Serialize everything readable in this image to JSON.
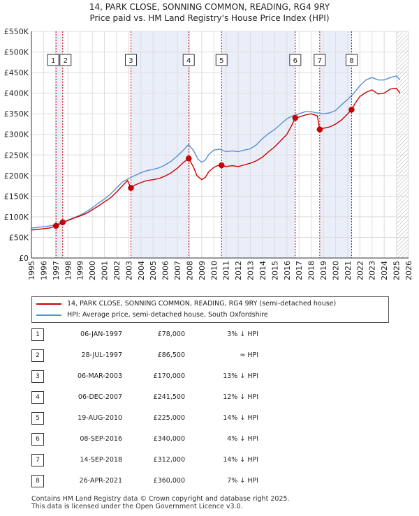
{
  "title": {
    "line1": "14, PARK CLOSE, SONNING COMMON, READING, RG4 9RY",
    "line2": "Price paid vs. HM Land Registry's House Price Index (HPI)"
  },
  "colors": {
    "property": "#cc0000",
    "hpi": "#5b8fd0",
    "band": "#e9eef9",
    "grid": "#dddddd",
    "marker_line": "#cc0000"
  },
  "legend": {
    "property_label": "14, PARK CLOSE, SONNING COMMON, READING, RG4 9RY (semi-detached house)",
    "hpi_label": "HPI: Average price, semi-detached house, South Oxfordshire"
  },
  "sales": [
    {
      "num": "1",
      "date": "06-JAN-1997",
      "price": "£78,000",
      "hpi": "3% ↓ HPI"
    },
    {
      "num": "2",
      "date": "28-JUL-1997",
      "price": "£86,500",
      "hpi": "≈ HPI"
    },
    {
      "num": "3",
      "date": "06-MAR-2003",
      "price": "£170,000",
      "hpi": "13% ↓ HPI"
    },
    {
      "num": "4",
      "date": "06-DEC-2007",
      "price": "£241,500",
      "hpi": "12% ↓ HPI"
    },
    {
      "num": "5",
      "date": "19-AUG-2010",
      "price": "£225,000",
      "hpi": "14% ↓ HPI"
    },
    {
      "num": "6",
      "date": "08-SEP-2016",
      "price": "£340,000",
      "hpi": "4% ↓ HPI"
    },
    {
      "num": "7",
      "date": "14-SEP-2018",
      "price": "£312,000",
      "hpi": "14% ↓ HPI"
    },
    {
      "num": "8",
      "date": "26-APR-2021",
      "price": "£360,000",
      "hpi": "7% ↓ HPI"
    }
  ],
  "footer": {
    "line1": "Contains HM Land Registry data © Crown copyright and database right 2025.",
    "line2": "This data is licensed under the Open Government Licence v3.0."
  },
  "chart_data": {
    "type": "line",
    "xlim": [
      1995,
      2026
    ],
    "ylim": [
      0,
      550000
    ],
    "y_ticks": [
      {
        "value": 0,
        "label": "£0"
      },
      {
        "value": 50000,
        "label": "£50K"
      },
      {
        "value": 100000,
        "label": "£100K"
      },
      {
        "value": 150000,
        "label": "£150K"
      },
      {
        "value": 200000,
        "label": "£200K"
      },
      {
        "value": 250000,
        "label": "£250K"
      },
      {
        "value": 300000,
        "label": "£300K"
      },
      {
        "value": 350000,
        "label": "£350K"
      },
      {
        "value": 400000,
        "label": "£400K"
      },
      {
        "value": 450000,
        "label": "£450K"
      },
      {
        "value": 500000,
        "label": "£500K"
      },
      {
        "value": 550000,
        "label": "£550K"
      }
    ],
    "x_ticks": [
      "1995",
      "1996",
      "1997",
      "1998",
      "1999",
      "2000",
      "2001",
      "2002",
      "2003",
      "2004",
      "2005",
      "2006",
      "2007",
      "2008",
      "2009",
      "2010",
      "2011",
      "2012",
      "2013",
      "2014",
      "2015",
      "2016",
      "2017",
      "2018",
      "2019",
      "2020",
      "2021",
      "2022",
      "2023",
      "2024",
      "2025",
      "2026"
    ],
    "shaded_spans": [
      [
        1997.02,
        1997.57
      ],
      [
        2003.18,
        2007.93
      ],
      [
        2010.63,
        2016.69
      ],
      [
        2018.7,
        2021.32
      ]
    ],
    "hatched_from": 2025.0,
    "sale_points": [
      {
        "label": "1",
        "x": 1997.02,
        "y": 78000
      },
      {
        "label": "2",
        "x": 1997.57,
        "y": 86500
      },
      {
        "label": "3",
        "x": 2003.18,
        "y": 170000
      },
      {
        "label": "4",
        "x": 2007.93,
        "y": 241500
      },
      {
        "label": "5",
        "x": 2010.63,
        "y": 225000
      },
      {
        "label": "6",
        "x": 2016.69,
        "y": 340000
      },
      {
        "label": "7",
        "x": 2018.7,
        "y": 312000
      },
      {
        "label": "8",
        "x": 2021.32,
        "y": 360000
      }
    ],
    "series": [
      {
        "name": "HPI: Average price, semi-detached house, South Oxfordshire",
        "color": "#5b8fd0",
        "x": [
          1995,
          1995.5,
          1996,
          1996.5,
          1997,
          1997.5,
          1998,
          1998.5,
          1999,
          1999.5,
          2000,
          2000.5,
          2001,
          2001.5,
          2002,
          2002.5,
          2003,
          2003.5,
          2004,
          2004.5,
          2005,
          2005.5,
          2006,
          2006.5,
          2007,
          2007.5,
          2007.9,
          2008.3,
          2008.7,
          2009,
          2009.3,
          2009.6,
          2010,
          2010.5,
          2011,
          2011.5,
          2012,
          2012.5,
          2013,
          2013.5,
          2014,
          2014.5,
          2015,
          2015.5,
          2016,
          2016.5,
          2017,
          2017.5,
          2018,
          2018.5,
          2019,
          2019.5,
          2020,
          2020.5,
          2021,
          2021.5,
          2022,
          2022.5,
          2023,
          2023.5,
          2024,
          2024.5,
          2025,
          2025.3
        ],
        "y": [
          73000,
          74000,
          76000,
          78000,
          81000,
          86000,
          92000,
          98000,
          104000,
          112000,
          122000,
          133000,
          143000,
          155000,
          170000,
          185000,
          193000,
          200000,
          207000,
          212000,
          215000,
          219000,
          226000,
          235000,
          248000,
          262000,
          275000,
          262000,
          240000,
          232000,
          238000,
          252000,
          262000,
          264000,
          258000,
          260000,
          258000,
          262000,
          265000,
          275000,
          290000,
          302000,
          312000,
          325000,
          338000,
          345000,
          350000,
          355000,
          355000,
          352000,
          350000,
          352000,
          358000,
          372000,
          385000,
          400000,
          418000,
          432000,
          438000,
          432000,
          432000,
          438000,
          442000,
          432000
        ]
      },
      {
        "name": "14, PARK CLOSE, SONNING COMMON, READING, RG4 9RY (semi-detached house)",
        "color": "#cc0000",
        "x": [
          1995,
          1995.5,
          1996,
          1996.5,
          1997.02,
          1997.3,
          1997.57,
          1998,
          1998.5,
          1999,
          1999.5,
          2000,
          2000.5,
          2001,
          2001.5,
          2002,
          2002.5,
          2002.9,
          2003.18,
          2003.5,
          2004,
          2004.5,
          2005,
          2005.5,
          2006,
          2006.5,
          2007,
          2007.5,
          2007.93,
          2008.3,
          2008.6,
          2009,
          2009.3,
          2009.6,
          2010,
          2010.3,
          2010.63,
          2011,
          2011.5,
          2012,
          2012.5,
          2013,
          2013.5,
          2014,
          2014.5,
          2015,
          2015.5,
          2016,
          2016.4,
          2016.69,
          2017,
          2017.5,
          2018,
          2018.5,
          2018.7,
          2019,
          2019.5,
          2020,
          2020.5,
          2021,
          2021.32,
          2021.6,
          2022,
          2022.5,
          2023,
          2023.5,
          2024,
          2024.5,
          2025,
          2025.3
        ],
        "y": [
          68000,
          69000,
          71000,
          73000,
          78000,
          82000,
          86500,
          91000,
          97000,
          102000,
          108000,
          117000,
          126000,
          136000,
          146000,
          160000,
          176000,
          188000,
          170000,
          177000,
          183000,
          188000,
          190000,
          193000,
          199000,
          207000,
          218000,
          232000,
          241500,
          222000,
          200000,
          190000,
          196000,
          210000,
          220000,
          224000,
          225000,
          222000,
          224000,
          222000,
          226000,
          230000,
          236000,
          245000,
          258000,
          270000,
          285000,
          300000,
          322000,
          340000,
          342000,
          347000,
          350000,
          345000,
          312000,
          315000,
          318000,
          325000,
          335000,
          350000,
          360000,
          375000,
          392000,
          402000,
          408000,
          398000,
          400000,
          410000,
          412000,
          400000
        ]
      }
    ]
  }
}
